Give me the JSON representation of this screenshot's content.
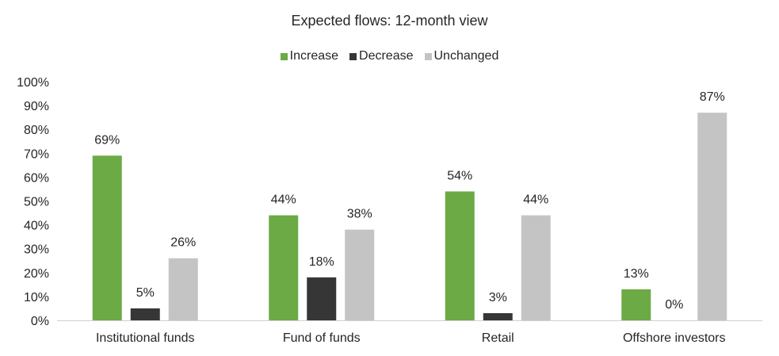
{
  "chart_data": {
    "type": "bar",
    "title": "Expected flows: 12-month view",
    "xlabel": "",
    "ylabel": "",
    "categories": [
      "Institutional funds",
      "Fund of funds",
      "Retail",
      "Offshore investors"
    ],
    "series": [
      {
        "name": "Increase",
        "values": [
          69,
          44,
          54,
          13
        ],
        "color": "#6BAA45"
      },
      {
        "name": "Decrease",
        "values": [
          5,
          18,
          3,
          0
        ],
        "color": "#363636"
      },
      {
        "name": "Unchanged",
        "values": [
          26,
          38,
          44,
          87
        ],
        "color": "#C4C4C4"
      }
    ],
    "ylim": [
      0,
      100
    ],
    "yticks": [
      0,
      10,
      20,
      30,
      40,
      50,
      60,
      70,
      80,
      90,
      100
    ],
    "ytick_labels": [
      "0%",
      "10%",
      "20%",
      "30%",
      "40%",
      "50%",
      "60%",
      "70%",
      "80%",
      "90%",
      "100%"
    ],
    "data_labels": [
      [
        "69%",
        "44%",
        "54%",
        "13%"
      ],
      [
        "5%",
        "18%",
        "3%",
        "0%"
      ],
      [
        "26%",
        "38%",
        "44%",
        "87%"
      ]
    ],
    "legend_position": "top",
    "grid": false
  }
}
